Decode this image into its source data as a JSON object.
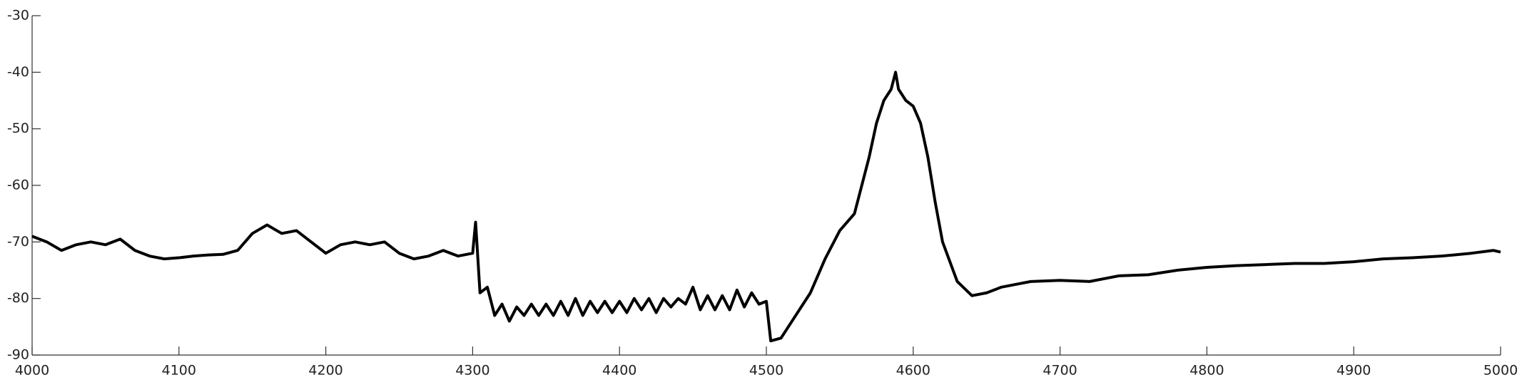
{
  "chart_data": {
    "type": "line",
    "x": [
      4000,
      4010,
      4020,
      4030,
      4040,
      4050,
      4060,
      4070,
      4080,
      4090,
      4100,
      4110,
      4120,
      4130,
      4140,
      4150,
      4160,
      4170,
      4180,
      4190,
      4200,
      4210,
      4220,
      4230,
      4240,
      4250,
      4260,
      4270,
      4280,
      4290,
      4300,
      4302,
      4305,
      4310,
      4315,
      4320,
      4325,
      4330,
      4335,
      4340,
      4345,
      4350,
      4355,
      4360,
      4365,
      4370,
      4375,
      4380,
      4385,
      4390,
      4395,
      4400,
      4405,
      4410,
      4415,
      4420,
      4425,
      4430,
      4435,
      4440,
      4445,
      4450,
      4455,
      4460,
      4465,
      4470,
      4475,
      4480,
      4485,
      4490,
      4495,
      4500,
      4503,
      4510,
      4520,
      4530,
      4540,
      4550,
      4560,
      4570,
      4575,
      4580,
      4585,
      4588,
      4590,
      4595,
      4600,
      4605,
      4610,
      4615,
      4620,
      4630,
      4640,
      4650,
      4660,
      4670,
      4680,
      4700,
      4720,
      4740,
      4760,
      4780,
      4800,
      4820,
      4840,
      4860,
      4880,
      4900,
      4920,
      4940,
      4960,
      4980,
      4995,
      5000
    ],
    "series": [
      {
        "color": "#000000",
        "values": [
          -69,
          -70,
          -71.5,
          -70.5,
          -70,
          -70.5,
          -69.5,
          -71.5,
          -72.5,
          -73,
          -72.8,
          -72.5,
          -72.3,
          -72.2,
          -71.5,
          -68.5,
          -67,
          -68.5,
          -68,
          -70,
          -72,
          -70.5,
          -70,
          -70.5,
          -70,
          -72,
          -73,
          -72.5,
          -71.5,
          -72.5,
          -72,
          -66.5,
          -79,
          -78,
          -83,
          -81,
          -84,
          -81.5,
          -83,
          -81,
          -83,
          -81,
          -83,
          -80.5,
          -83,
          -80,
          -83,
          -80.5,
          -82.5,
          -80.5,
          -82.5,
          -80.5,
          -82.5,
          -80,
          -82,
          -80,
          -82.5,
          -80,
          -81.5,
          -80,
          -81,
          -78,
          -82,
          -79.5,
          -82,
          -79.5,
          -82,
          -78.5,
          -81.5,
          -79,
          -81,
          -80.5,
          -87.5,
          -87,
          -83,
          -79,
          -73,
          -68,
          -65,
          -55,
          -49,
          -45,
          -43,
          -40,
          -43,
          -45,
          -46,
          -49,
          -55,
          -63,
          -70,
          -77,
          -79.5,
          -79,
          -78,
          -77.5,
          -77,
          -76.8,
          -77,
          -76,
          -75.8,
          -75,
          -74.5,
          -74.2,
          -74,
          -73.8,
          -73.8,
          -73.5,
          -73,
          -72.8,
          -72.5,
          -72,
          -71.5,
          -71.8
        ]
      }
    ],
    "xlim": [
      4000,
      5000
    ],
    "xticks": [
      4000,
      4100,
      4200,
      4300,
      4400,
      4500,
      4600,
      4700,
      4800,
      4900,
      5000
    ],
    "ylim": [
      -90,
      -30
    ],
    "yticks": [
      -90,
      -80,
      -70,
      -60,
      -50,
      -40,
      -30
    ]
  }
}
